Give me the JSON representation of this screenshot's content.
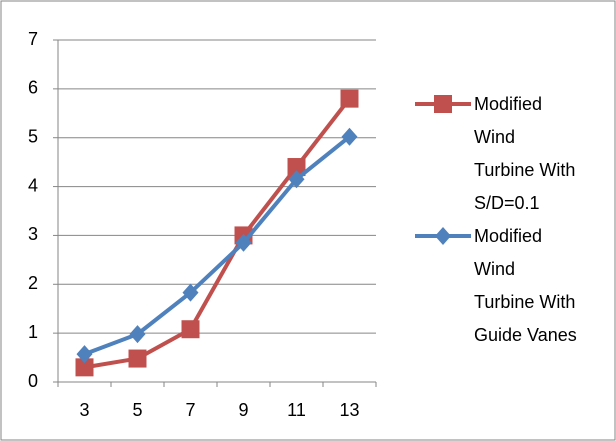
{
  "chart_data": {
    "type": "line",
    "categories": [
      "3",
      "5",
      "7",
      "9",
      "11",
      "13"
    ],
    "series": [
      {
        "name": "Modified Wind Turbine With S/D=0.1",
        "color": "#c0504d",
        "marker": "square",
        "values": [
          0.3,
          0.48,
          1.08,
          3.0,
          4.4,
          5.8
        ]
      },
      {
        "name": "Modified Wind Turbine With Guide Vanes",
        "color": "#4f81bd",
        "marker": "diamond",
        "values": [
          0.57,
          0.98,
          1.83,
          2.85,
          4.15,
          5.02
        ]
      }
    ],
    "ylim": [
      0,
      7
    ],
    "yticks": [
      0,
      1,
      2,
      3,
      4,
      5,
      6,
      7
    ],
    "grid": true,
    "legend": "right"
  }
}
